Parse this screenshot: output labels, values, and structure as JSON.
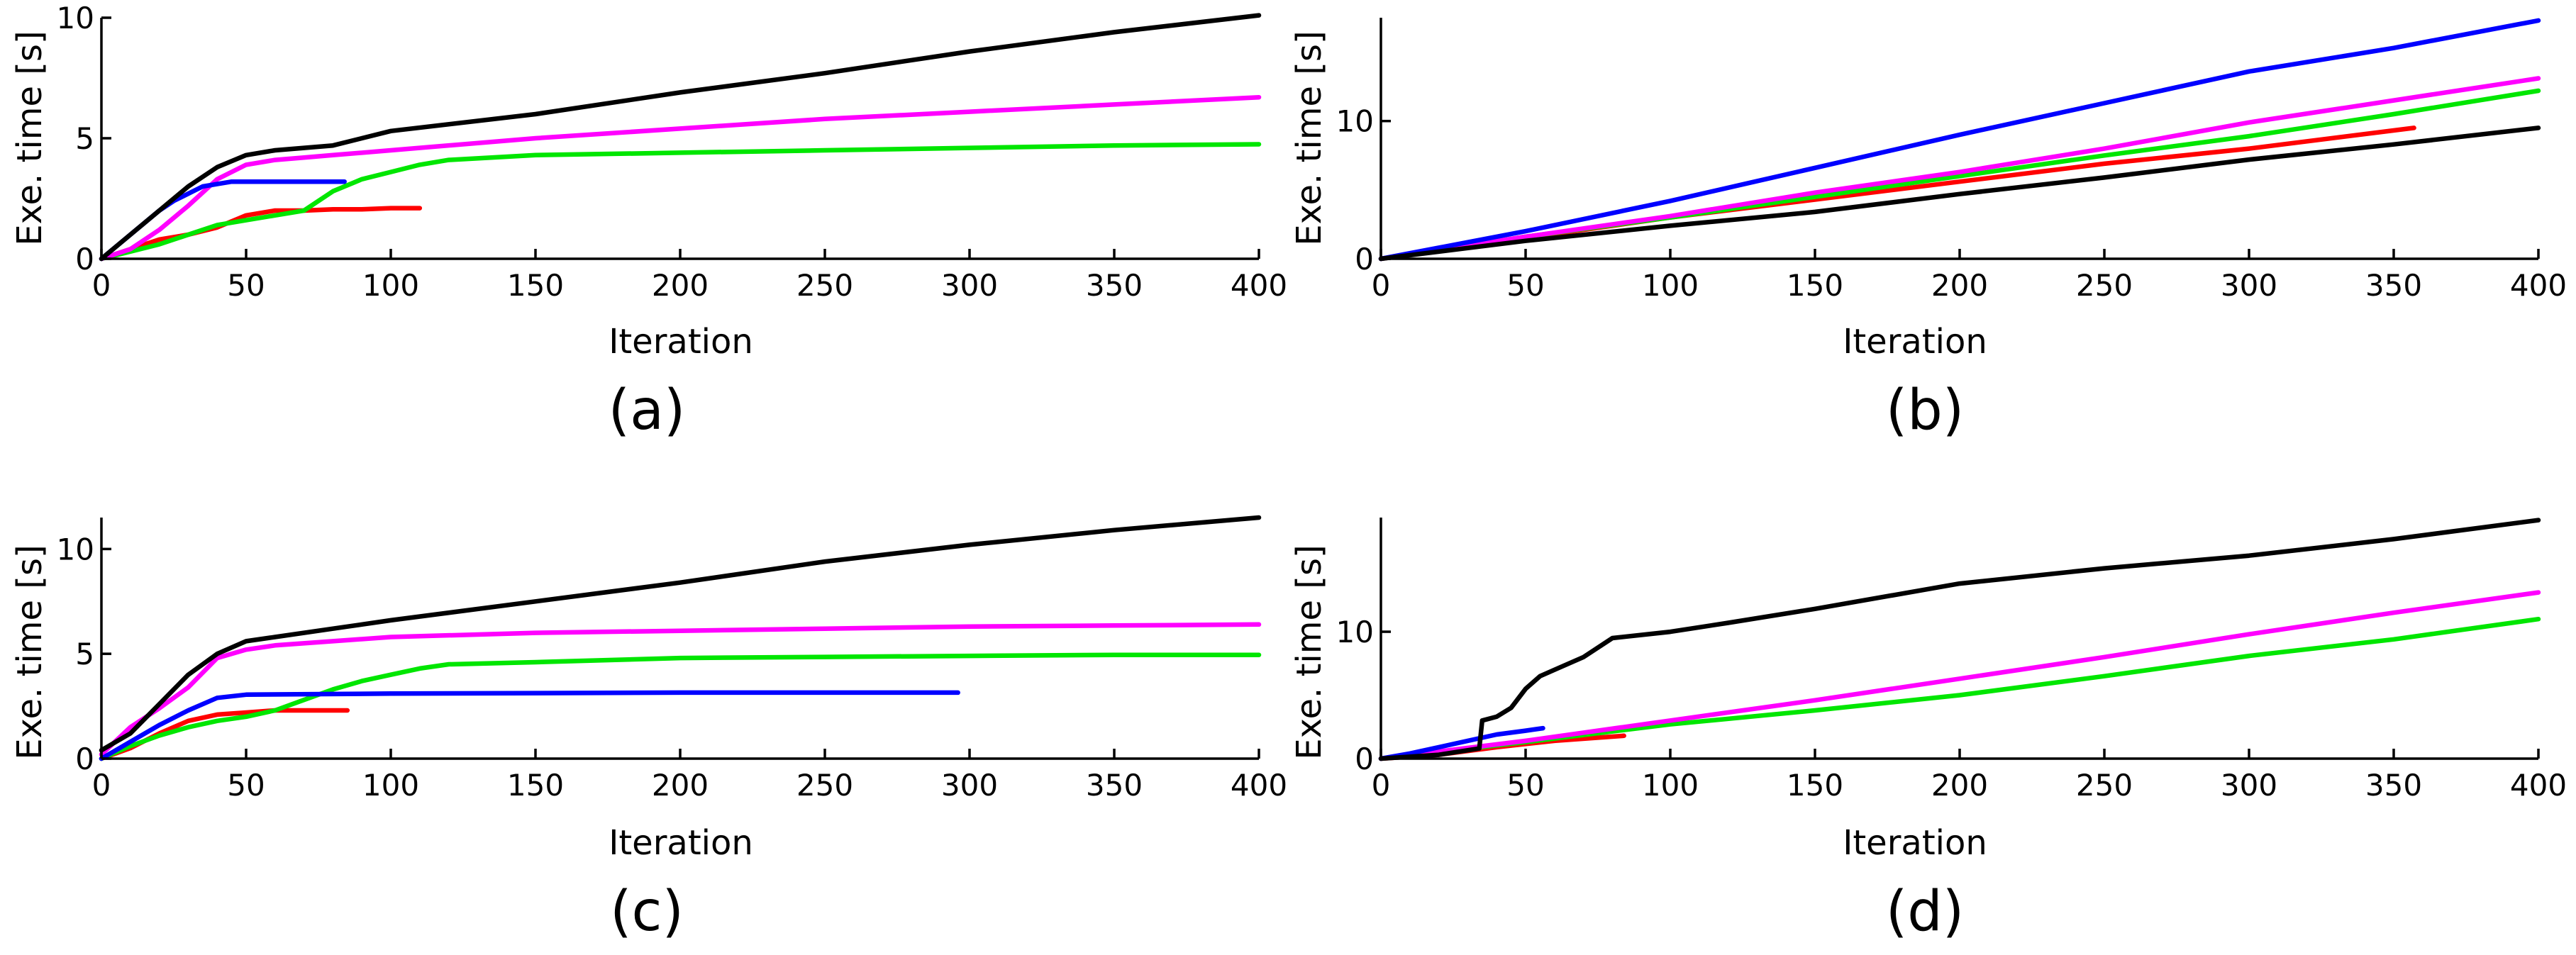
{
  "chart_data": [
    {
      "type": "line",
      "caption": "(a)",
      "xlabel": "Iteration",
      "ylabel": "Exe. time [s]",
      "xlim": [
        0,
        400
      ],
      "ylim": [
        0,
        10
      ],
      "xticks": [
        0,
        50,
        100,
        150,
        200,
        250,
        300,
        350,
        400
      ],
      "yticks": [
        0,
        5,
        10
      ],
      "grid": false,
      "series": [
        {
          "color": "#ff0000",
          "x": [
            0,
            10,
            20,
            30,
            40,
            50,
            60,
            70,
            80,
            90,
            100,
            110
          ],
          "y": [
            0,
            0.4,
            0.8,
            1.0,
            1.3,
            1.8,
            2.0,
            2.0,
            2.05,
            2.05,
            2.1,
            2.1
          ]
        },
        {
          "color": "#00e600",
          "x": [
            0,
            10,
            20,
            30,
            40,
            50,
            60,
            70,
            80,
            90,
            100,
            110,
            120,
            150,
            200,
            250,
            300,
            350,
            400
          ],
          "y": [
            0,
            0.3,
            0.6,
            1.0,
            1.4,
            1.6,
            1.8,
            2.0,
            2.8,
            3.3,
            3.6,
            3.9,
            4.1,
            4.3,
            4.4,
            4.5,
            4.6,
            4.7,
            4.75
          ]
        },
        {
          "color": "#ff00ff",
          "x": [
            0,
            10,
            20,
            30,
            40,
            50,
            60,
            70,
            80,
            100,
            150,
            200,
            250,
            300,
            350,
            400
          ],
          "y": [
            0,
            0.4,
            1.2,
            2.2,
            3.3,
            3.9,
            4.1,
            4.2,
            4.3,
            4.5,
            5.0,
            5.4,
            5.8,
            6.1,
            6.4,
            6.7
          ]
        },
        {
          "color": "#0000ff",
          "x": [
            0,
            5,
            10,
            15,
            20,
            25,
            30,
            35,
            40,
            45,
            60,
            84
          ],
          "y": [
            0,
            0.5,
            1.0,
            1.5,
            2.0,
            2.4,
            2.7,
            3.0,
            3.1,
            3.2,
            3.2,
            3.2
          ]
        },
        {
          "color": "#000000",
          "x": [
            0,
            10,
            20,
            30,
            40,
            50,
            60,
            70,
            80,
            90,
            100,
            150,
            200,
            250,
            300,
            350,
            400
          ],
          "y": [
            0,
            1.0,
            2.0,
            3.0,
            3.8,
            4.3,
            4.5,
            4.6,
            4.7,
            5.0,
            5.3,
            6.0,
            6.9,
            7.7,
            8.6,
            9.4,
            10.1
          ]
        }
      ]
    },
    {
      "type": "line",
      "caption": "(b)",
      "xlabel": "Iteration",
      "ylabel": "Exe. time [s]",
      "xlim": [
        0,
        400
      ],
      "ylim": [
        0,
        17.5
      ],
      "xticks": [
        0,
        50,
        100,
        150,
        200,
        250,
        300,
        350,
        400
      ],
      "yticks": [
        0,
        10
      ],
      "grid": false,
      "series": [
        {
          "color": "#ff0000",
          "x": [
            0,
            50,
            100,
            150,
            200,
            250,
            300,
            357
          ],
          "y": [
            0,
            1.5,
            3.0,
            4.3,
            5.6,
            6.9,
            8.0,
            9.5
          ]
        },
        {
          "color": "#00e600",
          "x": [
            0,
            50,
            100,
            150,
            200,
            250,
            300,
            350,
            400
          ],
          "y": [
            0,
            1.6,
            3.0,
            4.5,
            6.0,
            7.5,
            8.9,
            10.5,
            12.2
          ]
        },
        {
          "color": "#ff00ff",
          "x": [
            0,
            50,
            100,
            150,
            200,
            250,
            300,
            350,
            400
          ],
          "y": [
            0,
            1.6,
            3.1,
            4.8,
            6.3,
            8.0,
            9.9,
            11.5,
            13.1
          ]
        },
        {
          "color": "#0000ff",
          "x": [
            0,
            50,
            100,
            150,
            200,
            250,
            300,
            350,
            400
          ],
          "y": [
            0,
            2.0,
            4.2,
            6.6,
            9.0,
            11.3,
            13.6,
            15.3,
            17.3
          ]
        },
        {
          "color": "#000000",
          "x": [
            0,
            50,
            100,
            150,
            200,
            250,
            300,
            350,
            400
          ],
          "y": [
            0,
            1.3,
            2.4,
            3.4,
            4.7,
            5.9,
            7.2,
            8.3,
            9.5
          ]
        }
      ]
    },
    {
      "type": "line",
      "caption": "(c)",
      "xlabel": "Iteration",
      "ylabel": "Exe. time [s]",
      "xlim": [
        0,
        400
      ],
      "ylim": [
        0,
        11.5
      ],
      "xticks": [
        0,
        50,
        100,
        150,
        200,
        250,
        300,
        350,
        400
      ],
      "yticks": [
        0,
        5,
        10
      ],
      "grid": false,
      "series": [
        {
          "color": "#ff0000",
          "x": [
            0,
            10,
            20,
            30,
            40,
            50,
            60,
            70,
            85
          ],
          "y": [
            0,
            0.5,
            1.2,
            1.8,
            2.1,
            2.2,
            2.3,
            2.3,
            2.3
          ]
        },
        {
          "color": "#00e600",
          "x": [
            0,
            10,
            20,
            30,
            40,
            50,
            60,
            70,
            80,
            90,
            100,
            110,
            120,
            150,
            200,
            250,
            300,
            350,
            400
          ],
          "y": [
            0,
            0.6,
            1.1,
            1.5,
            1.8,
            2.0,
            2.3,
            2.8,
            3.3,
            3.7,
            4.0,
            4.3,
            4.5,
            4.6,
            4.8,
            4.85,
            4.9,
            4.95,
            4.95
          ]
        },
        {
          "color": "#ff00ff",
          "x": [
            0,
            10,
            20,
            30,
            40,
            50,
            60,
            80,
            100,
            150,
            200,
            250,
            300,
            350,
            400
          ],
          "y": [
            0.2,
            1.5,
            2.4,
            3.4,
            4.8,
            5.2,
            5.4,
            5.6,
            5.8,
            6.0,
            6.1,
            6.2,
            6.3,
            6.35,
            6.4
          ]
        },
        {
          "color": "#0000ff",
          "x": [
            0,
            10,
            20,
            30,
            40,
            50,
            100,
            200,
            296
          ],
          "y": [
            0,
            0.8,
            1.6,
            2.3,
            2.9,
            3.05,
            3.1,
            3.15,
            3.15
          ]
        },
        {
          "color": "#000000",
          "x": [
            0,
            10,
            20,
            30,
            40,
            50,
            60,
            80,
            100,
            150,
            200,
            250,
            300,
            350,
            400
          ],
          "y": [
            0.4,
            1.2,
            2.6,
            4.0,
            5.0,
            5.6,
            5.8,
            6.2,
            6.6,
            7.5,
            8.4,
            9.4,
            10.2,
            10.9,
            11.5
          ]
        }
      ]
    },
    {
      "type": "line",
      "caption": "(d)",
      "xlabel": "Iteration",
      "ylabel": "Exe. time [s]",
      "xlim": [
        0,
        400
      ],
      "ylim": [
        0,
        19
      ],
      "xticks": [
        0,
        50,
        100,
        150,
        200,
        250,
        300,
        350,
        400
      ],
      "yticks": [
        0,
        10
      ],
      "grid": false,
      "series": [
        {
          "color": "#ff0000",
          "x": [
            0,
            20,
            40,
            60,
            84
          ],
          "y": [
            0,
            0.3,
            0.9,
            1.4,
            1.8
          ]
        },
        {
          "color": "#00e600",
          "x": [
            0,
            50,
            100,
            150,
            200,
            250,
            300,
            350,
            400
          ],
          "y": [
            0,
            1.3,
            2.7,
            3.8,
            5.0,
            6.5,
            8.1,
            9.4,
            11.0
          ]
        },
        {
          "color": "#ff00ff",
          "x": [
            0,
            50,
            100,
            150,
            200,
            250,
            300,
            350,
            400
          ],
          "y": [
            0,
            1.4,
            3.0,
            4.6,
            6.3,
            8.0,
            9.8,
            11.5,
            13.1
          ]
        },
        {
          "color": "#0000ff",
          "x": [
            0,
            10,
            20,
            30,
            40,
            50,
            56
          ],
          "y": [
            0,
            0.4,
            0.9,
            1.4,
            1.9,
            2.2,
            2.4
          ]
        },
        {
          "color": "#000000",
          "x": [
            0,
            20,
            34,
            35,
            40,
            45,
            50,
            55,
            60,
            70,
            80,
            100,
            120,
            150,
            200,
            250,
            300,
            350,
            400
          ],
          "y": [
            0,
            0.3,
            0.8,
            3.0,
            3.3,
            4.0,
            5.5,
            6.5,
            7.0,
            8.0,
            9.5,
            10.0,
            10.7,
            11.8,
            13.8,
            15.0,
            16.0,
            17.3,
            18.8
          ]
        }
      ]
    }
  ]
}
